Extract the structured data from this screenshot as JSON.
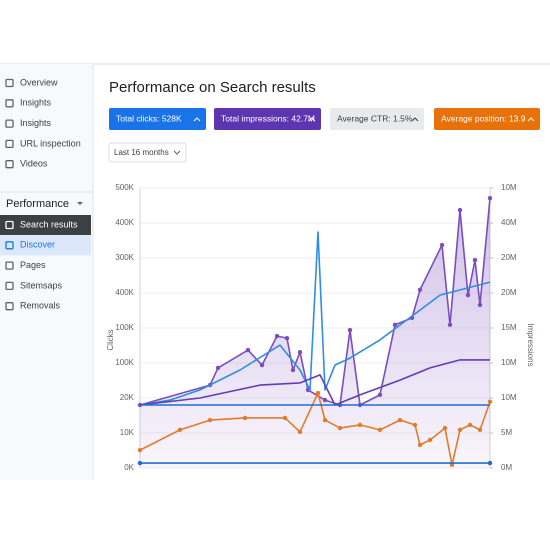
{
  "sidebar": {
    "items": [
      "Overview",
      "Insights",
      "Insights",
      "URL inspection",
      "Videos"
    ],
    "section": "Performance",
    "subitems": [
      "Search results",
      "Discover",
      "Pages",
      "Sitemsaps",
      "Removals"
    ]
  },
  "header": {
    "title": "Performance on Search results"
  },
  "metrics": [
    {
      "label": "Total clicks: 528K",
      "color": "#1a73e8",
      "text_color": "#ffffff"
    },
    {
      "label": "Total impressions: 42.7M",
      "color": "#5e35b1",
      "text_color": "#ffffff"
    },
    {
      "label": "Average CTR: 1.5%",
      "color": "#e8eaed",
      "text_color": "#3c4043"
    },
    {
      "label": "Average position: 13.9",
      "color": "#e8710a",
      "text_color": "#ffffff"
    }
  ],
  "filter": "Last 16 months",
  "chart_data": {
    "type": "line",
    "y_label": "Clicks",
    "y2_label": "Impressions",
    "grid": true,
    "xlim": [
      0,
      100
    ],
    "ylim": [
      0,
      8
    ],
    "y2lim": [
      0,
      8
    ],
    "yticks": [
      {
        "value": 0,
        "label": "0K"
      },
      {
        "value": 1,
        "label": "10K"
      },
      {
        "value": 2,
        "label": "20K"
      },
      {
        "value": 3,
        "label": "100K"
      },
      {
        "value": 4,
        "label": "100K"
      },
      {
        "value": 5,
        "label": "400K"
      },
      {
        "value": 6,
        "label": "300K"
      },
      {
        "value": 7,
        "label": "400K"
      },
      {
        "value": 8,
        "label": "500K"
      }
    ],
    "y2ticks": [
      {
        "value": 0,
        "label": "0M"
      },
      {
        "value": 1,
        "label": "5M"
      },
      {
        "value": 2,
        "label": "10M"
      },
      {
        "value": 3,
        "label": "10M"
      },
      {
        "value": 4,
        "label": "15M"
      },
      {
        "value": 5,
        "label": "20M"
      },
      {
        "value": 6,
        "label": "20M"
      },
      {
        "value": 7,
        "label": "40M"
      },
      {
        "value": 8,
        "label": "10M"
      }
    ],
    "series": [
      {
        "color": "#7c4dbd",
        "area": true,
        "markers": true,
        "x": [
          0,
          20,
          22.29,
          30.86,
          34.86,
          39.14,
          42,
          43.71,
          45.71,
          48,
          52.86,
          57.14,
          60,
          62.86,
          68.57,
          72.86,
          77.71,
          80,
          86.29,
          88.57,
          91.43,
          93.71,
          95.71,
          97.14,
          100
        ],
        "values": [
          1.8,
          2.37,
          2.86,
          3.37,
          2.94,
          3.77,
          3.71,
          2.8,
          3.31,
          2.23,
          1.94,
          1.8,
          3.94,
          1.8,
          2.09,
          4.09,
          4.29,
          5.09,
          6.37,
          4.09,
          7.37,
          4.94,
          5.94,
          4.66,
          7.71
        ]
      },
      {
        "color": "#2f8ee0",
        "area": false,
        "markers": false,
        "x": [
          0,
          8.57,
          17.14,
          28.57,
          40,
          45.71,
          48.57,
          50.86,
          52.86,
          55.71,
          60,
          68.57,
          80,
          85.71,
          100
        ],
        "values": [
          1.8,
          1.94,
          2.23,
          2.8,
          3.51,
          2.8,
          2.23,
          6.74,
          2.23,
          2.94,
          3.14,
          3.66,
          4.51,
          4.94,
          5.31
        ]
      },
      {
        "color": "#673ab7",
        "area": false,
        "markers": false,
        "x": [
          0,
          17.14,
          34.29,
          45.71,
          51.43,
          55.71,
          62.86,
          74.29,
          82.86,
          91.43,
          100
        ],
        "values": [
          1.8,
          2.0,
          2.37,
          2.43,
          2.66,
          1.8,
          2.09,
          2.51,
          2.86,
          3.09,
          3.09
        ]
      },
      {
        "color": "#e07b2a",
        "area": false,
        "markers": true,
        "x": [
          0,
          11.43,
          20,
          30,
          41.43,
          45.71,
          50.86,
          52.86,
          57.14,
          62.86,
          68.57,
          74.29,
          78.57,
          80,
          82.86,
          87.14,
          89.14,
          91.43,
          94.29,
          97.14,
          100
        ],
        "values": [
          0.51,
          1.09,
          1.37,
          1.43,
          1.43,
          1.03,
          2.14,
          1.37,
          1.14,
          1.23,
          1.09,
          1.37,
          1.23,
          0.66,
          0.8,
          1.14,
          0.09,
          1.09,
          1.23,
          1.09,
          1.89
        ]
      },
      {
        "color": "#1e6fd0",
        "area": false,
        "markers": false,
        "x": [
          0,
          100
        ],
        "values": [
          1.8,
          1.8
        ]
      },
      {
        "color": "#1e6fd0",
        "area": false,
        "markers": true,
        "x": [
          0,
          100
        ],
        "values": [
          0.14,
          0.14
        ]
      }
    ]
  }
}
